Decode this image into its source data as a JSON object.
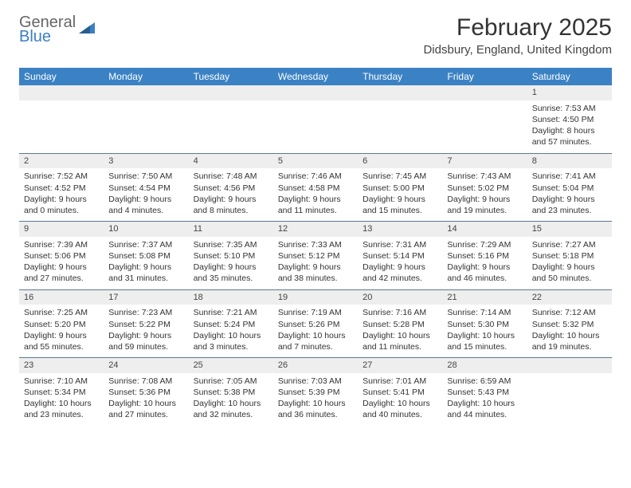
{
  "logo": {
    "line1": "General",
    "line2": "Blue"
  },
  "title": "February 2025",
  "location": "Didsbury, England, United Kingdom",
  "columns": [
    "Sunday",
    "Monday",
    "Tuesday",
    "Wednesday",
    "Thursday",
    "Friday",
    "Saturday"
  ],
  "colors": {
    "header_bg": "#3b82c4",
    "header_text": "#ffffff",
    "daynum_bg": "#eeeeee",
    "row_divider": "#5a7a9a",
    "logo_blue": "#3b7fc4",
    "logo_gray": "#666666"
  },
  "weeks": [
    [
      null,
      null,
      null,
      null,
      null,
      null,
      {
        "num": "1",
        "sunrise": "Sunrise: 7:53 AM",
        "sunset": "Sunset: 4:50 PM",
        "daylight": "Daylight: 8 hours and 57 minutes."
      }
    ],
    [
      {
        "num": "2",
        "sunrise": "Sunrise: 7:52 AM",
        "sunset": "Sunset: 4:52 PM",
        "daylight": "Daylight: 9 hours and 0 minutes."
      },
      {
        "num": "3",
        "sunrise": "Sunrise: 7:50 AM",
        "sunset": "Sunset: 4:54 PM",
        "daylight": "Daylight: 9 hours and 4 minutes."
      },
      {
        "num": "4",
        "sunrise": "Sunrise: 7:48 AM",
        "sunset": "Sunset: 4:56 PM",
        "daylight": "Daylight: 9 hours and 8 minutes."
      },
      {
        "num": "5",
        "sunrise": "Sunrise: 7:46 AM",
        "sunset": "Sunset: 4:58 PM",
        "daylight": "Daylight: 9 hours and 11 minutes."
      },
      {
        "num": "6",
        "sunrise": "Sunrise: 7:45 AM",
        "sunset": "Sunset: 5:00 PM",
        "daylight": "Daylight: 9 hours and 15 minutes."
      },
      {
        "num": "7",
        "sunrise": "Sunrise: 7:43 AM",
        "sunset": "Sunset: 5:02 PM",
        "daylight": "Daylight: 9 hours and 19 minutes."
      },
      {
        "num": "8",
        "sunrise": "Sunrise: 7:41 AM",
        "sunset": "Sunset: 5:04 PM",
        "daylight": "Daylight: 9 hours and 23 minutes."
      }
    ],
    [
      {
        "num": "9",
        "sunrise": "Sunrise: 7:39 AM",
        "sunset": "Sunset: 5:06 PM",
        "daylight": "Daylight: 9 hours and 27 minutes."
      },
      {
        "num": "10",
        "sunrise": "Sunrise: 7:37 AM",
        "sunset": "Sunset: 5:08 PM",
        "daylight": "Daylight: 9 hours and 31 minutes."
      },
      {
        "num": "11",
        "sunrise": "Sunrise: 7:35 AM",
        "sunset": "Sunset: 5:10 PM",
        "daylight": "Daylight: 9 hours and 35 minutes."
      },
      {
        "num": "12",
        "sunrise": "Sunrise: 7:33 AM",
        "sunset": "Sunset: 5:12 PM",
        "daylight": "Daylight: 9 hours and 38 minutes."
      },
      {
        "num": "13",
        "sunrise": "Sunrise: 7:31 AM",
        "sunset": "Sunset: 5:14 PM",
        "daylight": "Daylight: 9 hours and 42 minutes."
      },
      {
        "num": "14",
        "sunrise": "Sunrise: 7:29 AM",
        "sunset": "Sunset: 5:16 PM",
        "daylight": "Daylight: 9 hours and 46 minutes."
      },
      {
        "num": "15",
        "sunrise": "Sunrise: 7:27 AM",
        "sunset": "Sunset: 5:18 PM",
        "daylight": "Daylight: 9 hours and 50 minutes."
      }
    ],
    [
      {
        "num": "16",
        "sunrise": "Sunrise: 7:25 AM",
        "sunset": "Sunset: 5:20 PM",
        "daylight": "Daylight: 9 hours and 55 minutes."
      },
      {
        "num": "17",
        "sunrise": "Sunrise: 7:23 AM",
        "sunset": "Sunset: 5:22 PM",
        "daylight": "Daylight: 9 hours and 59 minutes."
      },
      {
        "num": "18",
        "sunrise": "Sunrise: 7:21 AM",
        "sunset": "Sunset: 5:24 PM",
        "daylight": "Daylight: 10 hours and 3 minutes."
      },
      {
        "num": "19",
        "sunrise": "Sunrise: 7:19 AM",
        "sunset": "Sunset: 5:26 PM",
        "daylight": "Daylight: 10 hours and 7 minutes."
      },
      {
        "num": "20",
        "sunrise": "Sunrise: 7:16 AM",
        "sunset": "Sunset: 5:28 PM",
        "daylight": "Daylight: 10 hours and 11 minutes."
      },
      {
        "num": "21",
        "sunrise": "Sunrise: 7:14 AM",
        "sunset": "Sunset: 5:30 PM",
        "daylight": "Daylight: 10 hours and 15 minutes."
      },
      {
        "num": "22",
        "sunrise": "Sunrise: 7:12 AM",
        "sunset": "Sunset: 5:32 PM",
        "daylight": "Daylight: 10 hours and 19 minutes."
      }
    ],
    [
      {
        "num": "23",
        "sunrise": "Sunrise: 7:10 AM",
        "sunset": "Sunset: 5:34 PM",
        "daylight": "Daylight: 10 hours and 23 minutes."
      },
      {
        "num": "24",
        "sunrise": "Sunrise: 7:08 AM",
        "sunset": "Sunset: 5:36 PM",
        "daylight": "Daylight: 10 hours and 27 minutes."
      },
      {
        "num": "25",
        "sunrise": "Sunrise: 7:05 AM",
        "sunset": "Sunset: 5:38 PM",
        "daylight": "Daylight: 10 hours and 32 minutes."
      },
      {
        "num": "26",
        "sunrise": "Sunrise: 7:03 AM",
        "sunset": "Sunset: 5:39 PM",
        "daylight": "Daylight: 10 hours and 36 minutes."
      },
      {
        "num": "27",
        "sunrise": "Sunrise: 7:01 AM",
        "sunset": "Sunset: 5:41 PM",
        "daylight": "Daylight: 10 hours and 40 minutes."
      },
      {
        "num": "28",
        "sunrise": "Sunrise: 6:59 AM",
        "sunset": "Sunset: 5:43 PM",
        "daylight": "Daylight: 10 hours and 44 minutes."
      },
      null
    ]
  ]
}
